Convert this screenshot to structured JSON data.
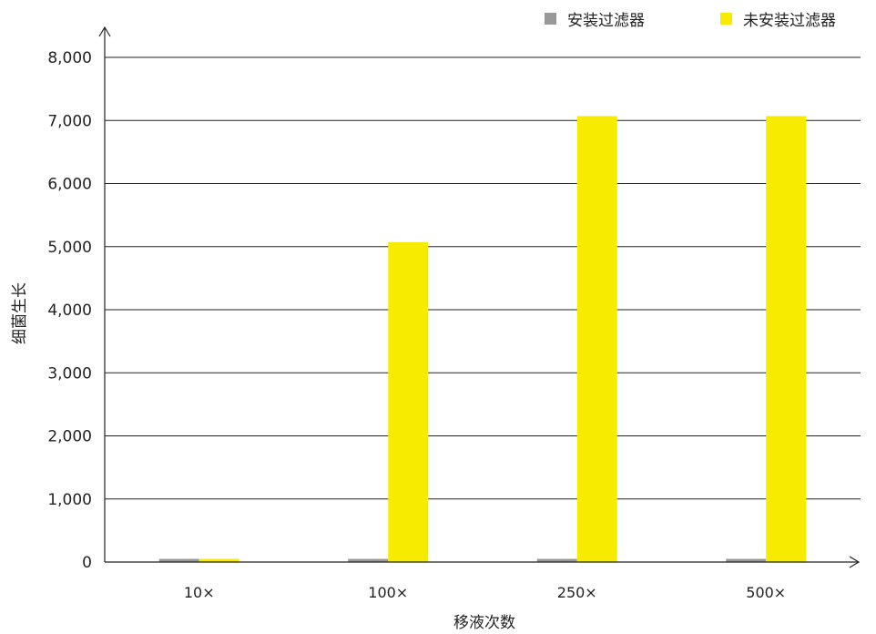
{
  "chart_data": {
    "type": "bar",
    "title": "",
    "xlabel": "移液次数",
    "ylabel": "细菌生长",
    "categories": [
      "10×",
      "100×",
      "250×",
      "500×"
    ],
    "series": [
      {
        "name": "安装过滤器",
        "color": "#999999",
        "values": [
          50,
          50,
          50,
          50
        ]
      },
      {
        "name": "未安装过滤器",
        "color": "#f7ec00",
        "values": [
          50,
          5070,
          7070,
          7070
        ]
      }
    ],
    "ylim": [
      0,
      8000
    ],
    "yticks": [
      "0",
      "1,000",
      "2,000",
      "3,000",
      "4,000",
      "5,000",
      "6,000",
      "7,000",
      "8,000"
    ],
    "grid": true,
    "legend_position": "top-right"
  }
}
